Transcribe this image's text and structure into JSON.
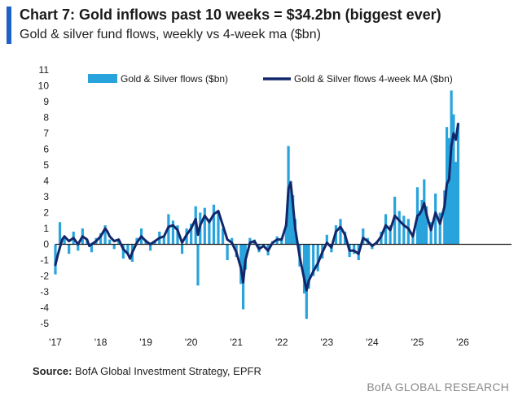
{
  "header": {
    "title": "Chart 7: Gold inflows past 10 weeks = $34.2bn (biggest ever)",
    "subtitle": "Gold & silver fund flows, weekly vs 4-week ma ($bn)"
  },
  "footer": {
    "source_label": "Source:",
    "source_text": " BofA Global Investment Strategy, EPFR",
    "brand": "BofA GLOBAL RESEARCH"
  },
  "colors": {
    "accent": "#1f62c7",
    "bars": "#29a3dc",
    "line": "#12276b"
  },
  "chart_data": {
    "type": "bar",
    "title": "Chart 7: Gold inflows past 10 weeks = $34.2bn (biggest ever)",
    "subtitle": "Gold & silver fund flows, weekly vs 4-week ma ($bn)",
    "ylim": [
      -5,
      11
    ],
    "y_ticks": [
      -5,
      -4,
      -3,
      -2,
      -1,
      0,
      1,
      2,
      3,
      4,
      5,
      6,
      7,
      8,
      9,
      10,
      11
    ],
    "x_ticks": [
      "'17",
      "'18",
      "'19",
      "'20",
      "'21",
      "'22",
      "'23",
      "'24",
      "'25",
      "'26"
    ],
    "legend_position": "top",
    "grid": false,
    "series": [
      {
        "name": "Gold & Silver flows ($bn)",
        "type": "bar",
        "color": "#29a3dc",
        "points": [
          [
            2017.0,
            -1.9
          ],
          [
            2017.1,
            1.4
          ],
          [
            2017.2,
            0.5
          ],
          [
            2017.3,
            -0.6
          ],
          [
            2017.4,
            0.8
          ],
          [
            2017.5,
            -0.4
          ],
          [
            2017.6,
            1.0
          ],
          [
            2017.7,
            0.3
          ],
          [
            2017.8,
            -0.5
          ],
          [
            2017.9,
            0.4
          ],
          [
            2018.0,
            0.7
          ],
          [
            2018.1,
            1.2
          ],
          [
            2018.2,
            0.3
          ],
          [
            2018.3,
            -0.3
          ],
          [
            2018.4,
            0.2
          ],
          [
            2018.5,
            -0.9
          ],
          [
            2018.6,
            -0.6
          ],
          [
            2018.7,
            -1.1
          ],
          [
            2018.8,
            0.4
          ],
          [
            2018.9,
            1.0
          ],
          [
            2019.0,
            0.3
          ],
          [
            2019.1,
            -0.4
          ],
          [
            2019.2,
            0.2
          ],
          [
            2019.3,
            0.8
          ],
          [
            2019.4,
            0.5
          ],
          [
            2019.5,
            1.9
          ],
          [
            2019.6,
            1.5
          ],
          [
            2019.7,
            1.2
          ],
          [
            2019.8,
            -0.6
          ],
          [
            2019.9,
            1.0
          ],
          [
            2020.0,
            1.3
          ],
          [
            2020.1,
            2.4
          ],
          [
            2020.15,
            -2.6
          ],
          [
            2020.2,
            2.0
          ],
          [
            2020.3,
            2.3
          ],
          [
            2020.4,
            1.6
          ],
          [
            2020.5,
            2.5
          ],
          [
            2020.6,
            2.1
          ],
          [
            2020.7,
            1.0
          ],
          [
            2020.8,
            -1.0
          ],
          [
            2020.9,
            0.4
          ],
          [
            2021.0,
            -0.8
          ],
          [
            2021.1,
            -2.5
          ],
          [
            2021.15,
            -4.1
          ],
          [
            2021.2,
            -1.6
          ],
          [
            2021.3,
            0.4
          ],
          [
            2021.4,
            0.3
          ],
          [
            2021.5,
            -0.5
          ],
          [
            2021.6,
            -0.2
          ],
          [
            2021.7,
            -0.7
          ],
          [
            2021.8,
            0.2
          ],
          [
            2021.9,
            0.5
          ],
          [
            2022.0,
            0.4
          ],
          [
            2022.1,
            1.3
          ],
          [
            2022.15,
            6.2
          ],
          [
            2022.2,
            4.0
          ],
          [
            2022.25,
            3.1
          ],
          [
            2022.3,
            1.6
          ],
          [
            2022.4,
            -1.4
          ],
          [
            2022.5,
            -3.1
          ],
          [
            2022.55,
            -4.7
          ],
          [
            2022.6,
            -2.8
          ],
          [
            2022.7,
            -2.0
          ],
          [
            2022.8,
            -1.7
          ],
          [
            2022.9,
            -0.9
          ],
          [
            2023.0,
            0.6
          ],
          [
            2023.1,
            -0.5
          ],
          [
            2023.2,
            1.2
          ],
          [
            2023.3,
            1.6
          ],
          [
            2023.4,
            0.8
          ],
          [
            2023.5,
            -0.8
          ],
          [
            2023.6,
            -0.6
          ],
          [
            2023.7,
            -1.0
          ],
          [
            2023.8,
            1.0
          ],
          [
            2023.9,
            0.4
          ],
          [
            2024.0,
            -0.3
          ],
          [
            2024.1,
            0.2
          ],
          [
            2024.2,
            0.8
          ],
          [
            2024.3,
            1.9
          ],
          [
            2024.4,
            1.2
          ],
          [
            2024.5,
            3.0
          ],
          [
            2024.6,
            2.1
          ],
          [
            2024.7,
            1.8
          ],
          [
            2024.8,
            1.6
          ],
          [
            2024.9,
            0.6
          ],
          [
            2025.0,
            3.6
          ],
          [
            2025.05,
            2.1
          ],
          [
            2025.1,
            2.8
          ],
          [
            2025.15,
            4.1
          ],
          [
            2025.2,
            2.4
          ],
          [
            2025.3,
            1.4
          ],
          [
            2025.4,
            3.2
          ],
          [
            2025.5,
            2.0
          ],
          [
            2025.6,
            3.4
          ],
          [
            2025.65,
            7.4
          ],
          [
            2025.7,
            6.7
          ],
          [
            2025.75,
            9.7
          ],
          [
            2025.8,
            8.2
          ],
          [
            2025.85,
            5.2
          ],
          [
            2025.9,
            7.6
          ]
        ]
      },
      {
        "name": "Gold & Silver flows 4-week MA ($bn)",
        "type": "line",
        "color": "#12276b",
        "points": [
          [
            2017.0,
            -1.3
          ],
          [
            2017.05,
            -0.7
          ],
          [
            2017.1,
            -0.2
          ],
          [
            2017.15,
            0.3
          ],
          [
            2017.2,
            0.5
          ],
          [
            2017.3,
            0.2
          ],
          [
            2017.4,
            0.4
          ],
          [
            2017.5,
            0.0
          ],
          [
            2017.6,
            0.5
          ],
          [
            2017.7,
            0.3
          ],
          [
            2017.75,
            -0.1
          ],
          [
            2017.8,
            0.0
          ],
          [
            2017.9,
            0.2
          ],
          [
            2018.0,
            0.5
          ],
          [
            2018.1,
            1.0
          ],
          [
            2018.15,
            0.8
          ],
          [
            2018.2,
            0.5
          ],
          [
            2018.3,
            0.2
          ],
          [
            2018.4,
            0.3
          ],
          [
            2018.5,
            -0.3
          ],
          [
            2018.6,
            -0.6
          ],
          [
            2018.65,
            -0.9
          ],
          [
            2018.7,
            -0.5
          ],
          [
            2018.8,
            0.1
          ],
          [
            2018.9,
            0.5
          ],
          [
            2019.0,
            0.2
          ],
          [
            2019.1,
            0.0
          ],
          [
            2019.2,
            0.2
          ],
          [
            2019.3,
            0.4
          ],
          [
            2019.4,
            0.5
          ],
          [
            2019.5,
            1.1
          ],
          [
            2019.6,
            1.2
          ],
          [
            2019.7,
            0.9
          ],
          [
            2019.8,
            0.1
          ],
          [
            2019.9,
            0.6
          ],
          [
            2020.0,
            1.0
          ],
          [
            2020.1,
            1.6
          ],
          [
            2020.15,
            0.6
          ],
          [
            2020.2,
            1.2
          ],
          [
            2020.3,
            1.8
          ],
          [
            2020.4,
            1.4
          ],
          [
            2020.5,
            1.9
          ],
          [
            2020.6,
            2.1
          ],
          [
            2020.7,
            1.2
          ],
          [
            2020.8,
            0.3
          ],
          [
            2020.9,
            0.1
          ],
          [
            2021.0,
            -0.5
          ],
          [
            2021.1,
            -1.5
          ],
          [
            2021.15,
            -2.4
          ],
          [
            2021.2,
            -1.0
          ],
          [
            2021.3,
            0.1
          ],
          [
            2021.4,
            0.2
          ],
          [
            2021.5,
            -0.3
          ],
          [
            2021.6,
            -0.1
          ],
          [
            2021.7,
            -0.4
          ],
          [
            2021.8,
            0.1
          ],
          [
            2021.9,
            0.3
          ],
          [
            2022.0,
            0.3
          ],
          [
            2022.1,
            1.2
          ],
          [
            2022.15,
            3.5
          ],
          [
            2022.2,
            3.9
          ],
          [
            2022.25,
            2.5
          ],
          [
            2022.3,
            1.0
          ],
          [
            2022.4,
            -0.8
          ],
          [
            2022.5,
            -2.2
          ],
          [
            2022.55,
            -2.9
          ],
          [
            2022.6,
            -2.3
          ],
          [
            2022.7,
            -1.7
          ],
          [
            2022.8,
            -1.2
          ],
          [
            2022.9,
            -0.5
          ],
          [
            2023.0,
            0.1
          ],
          [
            2023.1,
            -0.2
          ],
          [
            2023.2,
            0.8
          ],
          [
            2023.3,
            1.1
          ],
          [
            2023.4,
            0.6
          ],
          [
            2023.5,
            -0.4
          ],
          [
            2023.6,
            -0.4
          ],
          [
            2023.7,
            -0.6
          ],
          [
            2023.8,
            0.4
          ],
          [
            2023.9,
            0.2
          ],
          [
            2024.0,
            -0.1
          ],
          [
            2024.1,
            0.1
          ],
          [
            2024.2,
            0.5
          ],
          [
            2024.3,
            1.2
          ],
          [
            2024.4,
            0.9
          ],
          [
            2024.5,
            1.8
          ],
          [
            2024.6,
            1.5
          ],
          [
            2024.7,
            1.2
          ],
          [
            2024.8,
            1.0
          ],
          [
            2024.9,
            0.5
          ],
          [
            2025.0,
            1.8
          ],
          [
            2025.05,
            1.9
          ],
          [
            2025.1,
            2.2
          ],
          [
            2025.15,
            2.6
          ],
          [
            2025.2,
            1.9
          ],
          [
            2025.3,
            0.9
          ],
          [
            2025.4,
            2.0
          ],
          [
            2025.5,
            1.3
          ],
          [
            2025.6,
            2.4
          ],
          [
            2025.65,
            3.8
          ],
          [
            2025.7,
            4.1
          ],
          [
            2025.75,
            6.2
          ],
          [
            2025.8,
            7.0
          ],
          [
            2025.85,
            6.6
          ],
          [
            2025.9,
            7.6
          ]
        ]
      }
    ]
  }
}
